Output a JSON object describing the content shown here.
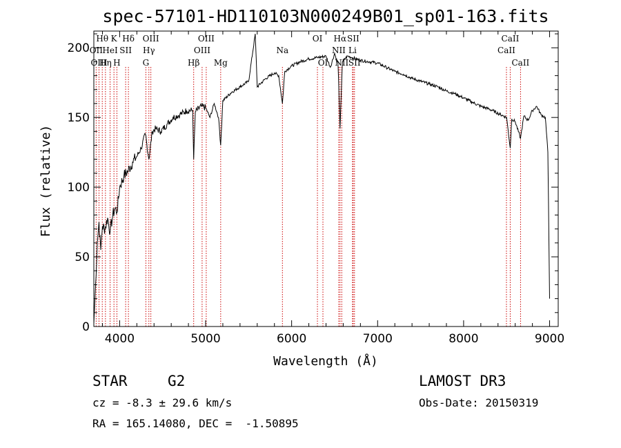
{
  "footer": {
    "object_class": "STAR",
    "subclass": "G2",
    "survey": "LAMOST DR3",
    "cz": "cz = -8.3 ± 29.6 km/s",
    "obs_date": "Obs-Date: 20150319",
    "coords": "RA = 165.14080, DEC =  -1.50895"
  },
  "chart_data": {
    "type": "line",
    "title": "spec-57101-HD110103N000249B01_sp01-163.fits",
    "xlabel": "Wavelength (Å)",
    "ylabel": "Flux (relative)",
    "xlim": [
      3700,
      9100
    ],
    "ylim": [
      0,
      212
    ],
    "x_ticks": [
      4000,
      5000,
      6000,
      7000,
      8000,
      9000
    ],
    "y_ticks": [
      0,
      50,
      100,
      150,
      200
    ],
    "colors": {
      "spectrum": "#000000",
      "lines": "#cc0000"
    },
    "series": [
      {
        "name": "spectrum",
        "x": [
          3700,
          3720,
          3740,
          3760,
          3780,
          3800,
          3830,
          3860,
          3890,
          3920,
          3950,
          3970,
          4000,
          4050,
          4100,
          4150,
          4200,
          4250,
          4300,
          4340,
          4380,
          4420,
          4480,
          4550,
          4620,
          4700,
          4780,
          4850,
          4861,
          4880,
          4950,
          5000,
          5050,
          5100,
          5150,
          5175,
          5200,
          5300,
          5400,
          5500,
          5577,
          5600,
          5700,
          5800,
          5850,
          5893,
          5920,
          6000,
          6100,
          6200,
          6300,
          6400,
          6450,
          6500,
          6540,
          6563,
          6590,
          6650,
          6700,
          6800,
          6900,
          7000,
          7100,
          7200,
          7300,
          7400,
          7500,
          7600,
          7700,
          7800,
          7900,
          8000,
          8100,
          8200,
          8300,
          8400,
          8500,
          8542,
          8560,
          8600,
          8662,
          8700,
          8750,
          8800,
          8850,
          8900,
          8950,
          8980,
          9000
        ],
        "y": [
          2,
          30,
          60,
          75,
          55,
          72,
          70,
          78,
          68,
          80,
          85,
          82,
          100,
          108,
          112,
          118,
          122,
          128,
          138,
          120,
          140,
          142,
          140,
          145,
          150,
          152,
          155,
          155,
          120,
          154,
          158,
          157,
          150,
          160,
          150,
          130,
          162,
          168,
          172,
          176,
          210,
          172,
          178,
          182,
          180,
          160,
          183,
          187,
          190,
          192,
          193,
          194,
          186,
          196,
          188,
          142,
          190,
          194,
          193,
          191,
          190,
          189,
          186,
          183,
          181,
          178,
          176,
          174,
          172,
          169,
          167,
          164,
          161,
          158,
          156,
          153,
          150,
          128,
          149,
          147,
          135,
          151,
          148,
          155,
          158,
          152,
          150,
          125,
          20
        ]
      }
    ],
    "line_ids": [
      {
        "label": "OII",
        "wl": 3727,
        "row": 1
      },
      {
        "label": "OIII",
        "wl": 3760,
        "row": 2
      },
      {
        "label": "Hθ",
        "wl": 3798,
        "row": 0
      },
      {
        "label": "Hη",
        "wl": 3835,
        "row": 2
      },
      {
        "label": "HeI",
        "wl": 3889,
        "row": 1
      },
      {
        "label": "K",
        "wl": 3934,
        "row": 0
      },
      {
        "label": "H",
        "wl": 3968,
        "row": 2
      },
      {
        "label": "SII",
        "wl": 4070,
        "row": 1
      },
      {
        "label": "Hδ",
        "wl": 4102,
        "row": 0
      },
      {
        "label": "G",
        "wl": 4305,
        "row": 2
      },
      {
        "label": "Hγ",
        "wl": 4340,
        "row": 1
      },
      {
        "label": "OIII",
        "wl": 4363,
        "row": 0
      },
      {
        "label": "Hβ",
        "wl": 4861,
        "row": 2
      },
      {
        "label": "OIII",
        "wl": 4959,
        "row": 1
      },
      {
        "label": "OIII",
        "wl": 5007,
        "row": 0
      },
      {
        "label": "Mg",
        "wl": 5175,
        "row": 2
      },
      {
        "label": "Na",
        "wl": 5893,
        "row": 1
      },
      {
        "label": "OI",
        "wl": 6300,
        "row": 0
      },
      {
        "label": "OI",
        "wl": 6364,
        "row": 2
      },
      {
        "label": "NII",
        "wl": 6548,
        "row": 1
      },
      {
        "label": "Hα",
        "wl": 6563,
        "row": 0
      },
      {
        "label": "NII",
        "wl": 6583,
        "row": 2
      },
      {
        "label": "Li",
        "wl": 6708,
        "row": 1
      },
      {
        "label": "SII",
        "wl": 6716,
        "row": 0
      },
      {
        "label": "SII",
        "wl": 6731,
        "row": 2
      },
      {
        "label": "CaII",
        "wl": 8498,
        "row": 1
      },
      {
        "label": "CaII",
        "wl": 8542,
        "row": 0
      },
      {
        "label": "CaII",
        "wl": 8662,
        "row": 2
      }
    ]
  }
}
